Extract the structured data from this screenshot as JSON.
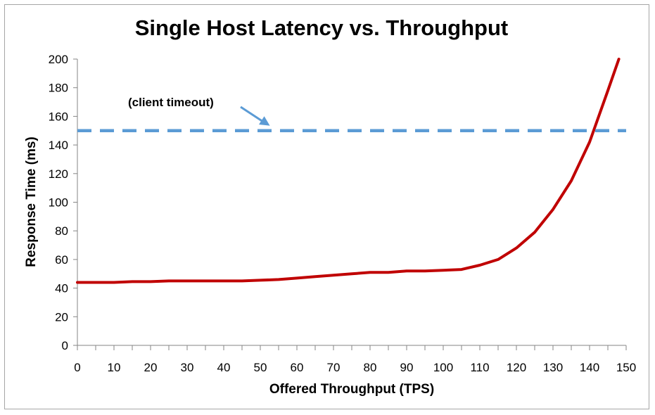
{
  "chart_data": {
    "type": "line",
    "title": "Single Host Latency vs. Throughput",
    "xlabel": "Offered Throughput (TPS)",
    "ylabel": "Response Time (ms)",
    "xlim": [
      0,
      150
    ],
    "ylim": [
      0,
      200
    ],
    "x_ticks": [
      0,
      10,
      20,
      30,
      40,
      50,
      60,
      70,
      80,
      90,
      100,
      110,
      120,
      130,
      140,
      150
    ],
    "y_ticks": [
      0,
      20,
      40,
      60,
      80,
      100,
      120,
      140,
      160,
      180,
      200
    ],
    "grid": false,
    "legend": "none",
    "series": [
      {
        "color": "#c00000",
        "style": "solid",
        "x": [
          0,
          5,
          10,
          15,
          20,
          25,
          30,
          35,
          40,
          45,
          50,
          55,
          60,
          65,
          70,
          75,
          80,
          85,
          90,
          95,
          100,
          105,
          110,
          115,
          120,
          125,
          130,
          135,
          140,
          145,
          148
        ],
        "y": [
          44,
          44,
          44,
          44.5,
          44.5,
          45,
          45,
          45,
          45,
          45,
          45.5,
          46,
          47,
          48,
          49,
          50,
          51,
          51,
          52,
          52,
          52.5,
          53,
          56,
          60,
          68,
          79,
          95,
          115,
          142,
          178,
          200
        ]
      },
      {
        "color": "#5b9bd5",
        "style": "dashed",
        "x": [
          0,
          150
        ],
        "y": [
          150,
          150
        ]
      }
    ],
    "annotations": [
      {
        "text": "(client timeout)",
        "target_x": 53,
        "target_y": 151
      }
    ]
  }
}
